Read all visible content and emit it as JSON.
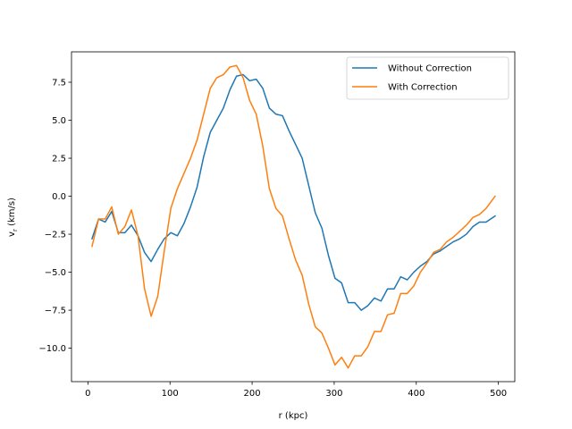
{
  "chart_data": {
    "type": "line",
    "title": "",
    "xlabel": "r (kpc)",
    "ylabel_base": "v",
    "ylabel_sub": "r",
    "ylabel_unit": " (km/s)",
    "xlim": [
      -20,
      520
    ],
    "ylim": [
      -12.2,
      9.5
    ],
    "xticks": [
      0,
      100,
      200,
      300,
      400,
      500
    ],
    "xtick_labels": [
      "0",
      "100",
      "200",
      "300",
      "400",
      "500"
    ],
    "yticks": [
      7.5,
      5.0,
      2.5,
      0.0,
      -2.5,
      -5.0,
      -7.5,
      -10.0
    ],
    "ytick_labels": [
      "7.5",
      "5.0",
      "2.5",
      "0.0",
      "−2.5",
      "−5.0",
      "−7.5",
      "−10.0"
    ],
    "grid": false,
    "legend_position": "top-right",
    "series": [
      {
        "name": "Without Correction",
        "color": "#1f77b4",
        "x": [
          5,
          13,
          21,
          29,
          37,
          45,
          53,
          61,
          69,
          77,
          85,
          93,
          101,
          109,
          117,
          125,
          133,
          141,
          149,
          157,
          165,
          173,
          181,
          189,
          197,
          205,
          213,
          221,
          229,
          237,
          245,
          253,
          261,
          269,
          277,
          285,
          293,
          301,
          309,
          317,
          325,
          333,
          341,
          349,
          357,
          365,
          373,
          381,
          389,
          397,
          405,
          413,
          421,
          429,
          437,
          445,
          453,
          461,
          469,
          477,
          485,
          496
        ],
        "y": [
          -2.8,
          -1.5,
          -1.7,
          -1.0,
          -2.4,
          -2.4,
          -1.9,
          -2.6,
          -3.7,
          -4.3,
          -3.5,
          -2.8,
          -2.4,
          -2.6,
          -1.8,
          -0.7,
          0.6,
          2.6,
          4.2,
          5.0,
          5.8,
          7.0,
          7.9,
          8.0,
          7.6,
          7.7,
          7.1,
          5.8,
          5.4,
          5.3,
          4.3,
          3.4,
          2.5,
          0.7,
          -1.1,
          -2.1,
          -3.9,
          -5.4,
          -5.7,
          -7.0,
          -7.0,
          -7.5,
          -7.2,
          -6.7,
          -6.9,
          -6.1,
          -6.1,
          -5.3,
          -5.5,
          -5.0,
          -4.6,
          -4.3,
          -3.8,
          -3.6,
          -3.3,
          -3.0,
          -2.8,
          -2.5,
          -2.0,
          -1.7,
          -1.7,
          -1.3
        ]
      },
      {
        "name": "With Correction",
        "color": "#ff7f0e",
        "x": [
          5,
          13,
          21,
          29,
          37,
          45,
          53,
          61,
          69,
          77,
          85,
          93,
          101,
          109,
          117,
          125,
          133,
          141,
          149,
          157,
          165,
          173,
          181,
          189,
          197,
          205,
          213,
          221,
          229,
          237,
          245,
          253,
          261,
          269,
          277,
          285,
          293,
          301,
          309,
          317,
          325,
          333,
          341,
          349,
          357,
          365,
          373,
          381,
          389,
          397,
          405,
          413,
          421,
          429,
          437,
          445,
          453,
          461,
          469,
          477,
          485,
          496
        ],
        "y": [
          -3.3,
          -1.5,
          -1.5,
          -0.7,
          -2.5,
          -2.0,
          -0.9,
          -2.6,
          -6.1,
          -7.9,
          -6.6,
          -3.6,
          -0.8,
          0.5,
          1.5,
          2.5,
          3.7,
          5.4,
          7.1,
          7.8,
          8.0,
          8.5,
          8.6,
          7.8,
          6.3,
          5.4,
          3.3,
          0.5,
          -0.8,
          -1.3,
          -2.8,
          -4.2,
          -5.2,
          -7.1,
          -8.6,
          -9.0,
          -10.0,
          -11.1,
          -10.6,
          -11.3,
          -10.5,
          -10.5,
          -9.9,
          -8.9,
          -8.9,
          -7.8,
          -7.7,
          -6.4,
          -6.4,
          -5.9,
          -5.0,
          -4.4,
          -3.7,
          -3.5,
          -3.0,
          -2.7,
          -2.3,
          -1.9,
          -1.4,
          -1.2,
          -0.8,
          0.0
        ]
      }
    ]
  }
}
